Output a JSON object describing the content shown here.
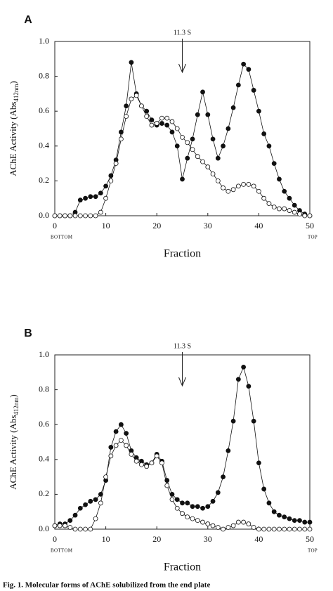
{
  "chart_data": [
    {
      "type": "line",
      "panel": "A",
      "annotation": {
        "text": "11.3 S",
        "x": 25
      },
      "y_label": "AChE Activity (Abs",
      "y_label_sub": "412nm",
      "y_label_end": ")",
      "x_label": "Fraction",
      "x_left_note": "BOTTOM",
      "x_right_note": "TOP",
      "x": [
        0,
        1,
        2,
        3,
        4,
        5,
        6,
        7,
        8,
        9,
        10,
        11,
        12,
        13,
        14,
        15,
        16,
        17,
        18,
        19,
        20,
        21,
        22,
        23,
        24,
        25,
        26,
        27,
        28,
        29,
        30,
        31,
        32,
        33,
        34,
        35,
        36,
        37,
        38,
        39,
        40,
        41,
        42,
        43,
        44,
        45,
        46,
        47,
        48,
        49,
        50
      ],
      "series": [
        {
          "color": "#111111",
          "marker": "filled",
          "values": [
            0,
            0,
            0,
            0,
            0.02,
            0.09,
            0.1,
            0.11,
            0.11,
            0.13,
            0.17,
            0.23,
            0.32,
            0.48,
            0.63,
            0.88,
            0.7,
            0.63,
            0.6,
            0.55,
            0.52,
            0.53,
            0.52,
            0.48,
            0.4,
            0.21,
            0.33,
            0.44,
            0.58,
            0.71,
            0.58,
            0.44,
            0.33,
            0.4,
            0.5,
            0.62,
            0.75,
            0.87,
            0.84,
            0.72,
            0.6,
            0.47,
            0.4,
            0.3,
            0.21,
            0.14,
            0.1,
            0.06,
            0.03,
            0.01,
            0
          ]
        },
        {
          "color": "#111111",
          "marker": "open",
          "values": [
            0,
            0,
            0,
            0,
            0,
            0,
            0,
            0,
            0,
            0.02,
            0.1,
            0.2,
            0.3,
            0.44,
            0.57,
            0.67,
            0.69,
            0.63,
            0.57,
            0.52,
            0.53,
            0.56,
            0.56,
            0.54,
            0.5,
            0.45,
            0.42,
            0.38,
            0.34,
            0.31,
            0.28,
            0.24,
            0.2,
            0.16,
            0.14,
            0.15,
            0.17,
            0.18,
            0.18,
            0.17,
            0.14,
            0.1,
            0.07,
            0.05,
            0.04,
            0.04,
            0.03,
            0.02,
            0.01,
            0,
            0
          ]
        }
      ],
      "xlim": [
        0,
        50
      ],
      "xticks": [
        0,
        10,
        20,
        30,
        40,
        50
      ],
      "ylim": [
        0,
        1
      ],
      "yticks": [
        {
          "value": 0,
          "label": "0.0"
        },
        0.2,
        0.4,
        0.6,
        0.8,
        {
          "value": 1,
          "label": "1.0"
        }
      ]
    },
    {
      "type": "line",
      "panel": "B",
      "annotation": {
        "text": "11.3 S",
        "x": 25
      },
      "y_label": "AChE Activity (Abs",
      "y_label_sub": "412nm",
      "y_label_end": ")",
      "x_label": "Fraction",
      "x_left_note": "BOTTOM",
      "x_right_note": "TOP",
      "x": [
        0,
        1,
        2,
        3,
        4,
        5,
        6,
        7,
        8,
        9,
        10,
        11,
        12,
        13,
        14,
        15,
        16,
        17,
        18,
        19,
        20,
        21,
        22,
        23,
        24,
        25,
        26,
        27,
        28,
        29,
        30,
        31,
        32,
        33,
        34,
        35,
        36,
        37,
        38,
        39,
        40,
        41,
        42,
        43,
        44,
        45,
        46,
        47,
        48,
        49,
        50
      ],
      "series": [
        {
          "color": "#111111",
          "marker": "filled",
          "values": [
            0.02,
            0.03,
            0.03,
            0.05,
            0.08,
            0.12,
            0.14,
            0.16,
            0.17,
            0.2,
            0.28,
            0.47,
            0.56,
            0.6,
            0.55,
            0.45,
            0.41,
            0.39,
            0.37,
            0.38,
            0.43,
            0.39,
            0.28,
            0.2,
            0.17,
            0.15,
            0.15,
            0.13,
            0.13,
            0.12,
            0.13,
            0.16,
            0.21,
            0.3,
            0.45,
            0.62,
            0.86,
            0.93,
            0.82,
            0.62,
            0.38,
            0.23,
            0.15,
            0.1,
            0.08,
            0.07,
            0.06,
            0.05,
            0.05,
            0.04,
            0.04
          ]
        },
        {
          "color": "#111111",
          "marker": "open",
          "values": [
            0.02,
            0.02,
            0.02,
            0.01,
            0,
            0,
            0,
            0,
            0.06,
            0.15,
            0.3,
            0.42,
            0.48,
            0.51,
            0.48,
            0.43,
            0.39,
            0.37,
            0.36,
            0.38,
            0.42,
            0.38,
            0.25,
            0.17,
            0.12,
            0.09,
            0.07,
            0.06,
            0.05,
            0.04,
            0.03,
            0.02,
            0.01,
            0,
            0.01,
            0.02,
            0.04,
            0.04,
            0.03,
            0.01,
            0,
            0,
            0,
            0,
            0,
            0,
            0,
            0,
            0,
            0,
            0
          ]
        }
      ],
      "xlim": [
        0,
        50
      ],
      "xticks": [
        0,
        10,
        20,
        30,
        40,
        50
      ],
      "ylim": [
        0,
        1
      ],
      "yticks": [
        {
          "value": 0,
          "label": "0.0"
        },
        0.2,
        0.4,
        0.6,
        0.8,
        {
          "value": 1,
          "label": "1.0"
        }
      ]
    }
  ],
  "caption": "Fig. 1. Molecular forms of AChE solubilized from the end plate"
}
